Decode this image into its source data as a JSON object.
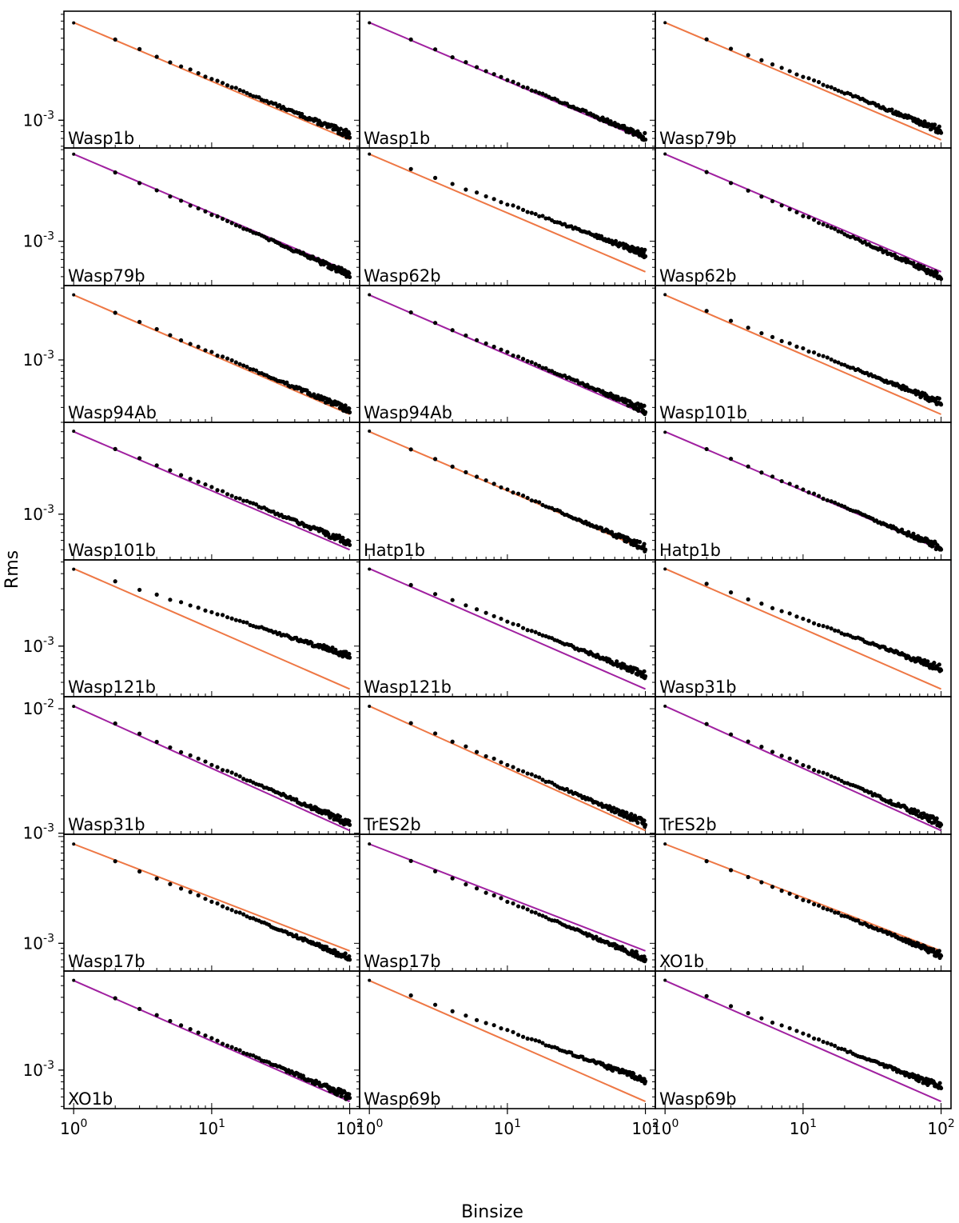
{
  "figure": {
    "xlabel": "Binsize",
    "ylabel": "Rms",
    "x_ticks": [
      "10^0",
      "10^1",
      "10^2"
    ],
    "colors": {
      "orange": "#ee7744",
      "purple": "#a020a0",
      "points": "#000000"
    }
  },
  "chart_data": {
    "type": "scatter",
    "xscale": "log",
    "yscale": "log",
    "xlim": [
      0.85,
      118
    ],
    "xlabel": "Binsize",
    "ylabel": "Rms",
    "panels": [
      {
        "label": "Wasp1b",
        "row": 0,
        "col": 0,
        "line_color": "orange",
        "r0": 0.0068,
        "r100": 0.00075,
        "ylim": [
          0.00058,
          0.0085
        ],
        "yticks": [
          "10^-3"
        ]
      },
      {
        "label": "Wasp1b",
        "row": 0,
        "col": 1,
        "line_color": "purple",
        "r0": 0.0068,
        "r100": 0.00072,
        "ylim": [
          0.00058,
          0.0085
        ],
        "yticks": []
      },
      {
        "label": "Wasp79b",
        "row": 0,
        "col": 2,
        "line_color": "orange",
        "r0": 0.0068,
        "r100": 0.00082,
        "ylim": [
          0.00058,
          0.0085
        ],
        "yticks": []
      },
      {
        "label": "Wasp79b",
        "row": 1,
        "col": 0,
        "line_color": "purple",
        "r0": 0.0055,
        "r100": 0.00052,
        "ylim": [
          0.00042,
          0.0062
        ],
        "yticks": [
          "10^-3"
        ]
      },
      {
        "label": "Wasp62b",
        "row": 1,
        "col": 1,
        "line_color": "orange",
        "r0": 0.0055,
        "r100": 0.00078,
        "ylim": [
          0.00042,
          0.0062
        ],
        "yticks": []
      },
      {
        "label": "Wasp62b",
        "row": 1,
        "col": 2,
        "line_color": "purple",
        "r0": 0.0055,
        "r100": 0.0005,
        "ylim": [
          0.00042,
          0.0062
        ],
        "yticks": []
      },
      {
        "label": "Wasp94Ab",
        "row": 2,
        "col": 0,
        "line_color": "orange",
        "r0": 0.0035,
        "r100": 0.00038,
        "ylim": [
          0.0003,
          0.0042
        ],
        "yticks": [
          "10^-3"
        ]
      },
      {
        "label": "Wasp94Ab",
        "row": 2,
        "col": 1,
        "line_color": "purple",
        "r0": 0.0035,
        "r100": 0.00038,
        "ylim": [
          0.0003,
          0.0042
        ],
        "yticks": []
      },
      {
        "label": "Wasp101b",
        "row": 2,
        "col": 2,
        "line_color": "orange",
        "r0": 0.0035,
        "r100": 0.00044,
        "ylim": [
          0.0003,
          0.0042
        ],
        "yticks": []
      },
      {
        "label": "Wasp101b",
        "row": 3,
        "col": 0,
        "line_color": "purple",
        "r0": 0.005,
        "r100": 0.00057,
        "ylim": [
          0.00041,
          0.006
        ],
        "yticks": [
          "10^-3"
        ]
      },
      {
        "label": "Hatp1b",
        "row": 3,
        "col": 1,
        "line_color": "orange",
        "r0": 0.005,
        "r100": 0.00052,
        "ylim": [
          0.00041,
          0.006
        ],
        "yticks": []
      },
      {
        "label": "Hatp1b",
        "row": 3,
        "col": 2,
        "line_color": "purple",
        "r0": 0.005,
        "r100": 0.00052,
        "ylim": [
          0.00041,
          0.006
        ],
        "yticks": []
      },
      {
        "label": "Wasp121b",
        "row": 4,
        "col": 0,
        "line_color": "orange",
        "r0": 0.0044,
        "r100": 0.00083,
        "ylim": [
          0.00038,
          0.0052
        ],
        "yticks": [
          "10^-3"
        ]
      },
      {
        "label": "Wasp121b",
        "row": 4,
        "col": 1,
        "line_color": "purple",
        "r0": 0.0044,
        "r100": 0.00058,
        "ylim": [
          0.00038,
          0.0052
        ],
        "yticks": []
      },
      {
        "label": "Wasp31b",
        "row": 4,
        "col": 2,
        "line_color": "orange",
        "r0": 0.0044,
        "r100": 0.00065,
        "ylim": [
          0.00038,
          0.0052
        ],
        "yticks": []
      },
      {
        "label": "Wasp31b",
        "row": 5,
        "col": 0,
        "line_color": "purple",
        "r0": 0.0105,
        "r100": 0.0012,
        "ylim": [
          0.00098,
          0.0125
        ],
        "yticks": [
          "10^-2",
          "10^-3"
        ]
      },
      {
        "label": "TrES2b",
        "row": 5,
        "col": 1,
        "line_color": "orange",
        "r0": 0.0105,
        "r100": 0.0012,
        "ylim": [
          0.00098,
          0.0125
        ],
        "yticks": []
      },
      {
        "label": "TrES2b",
        "row": 5,
        "col": 2,
        "line_color": "purple",
        "r0": 0.0105,
        "r100": 0.0012,
        "ylim": [
          0.00098,
          0.0125
        ],
        "yticks": []
      },
      {
        "label": "Wasp17b",
        "row": 6,
        "col": 0,
        "line_color": "orange",
        "r0": 0.0085,
        "r100": 0.00072,
        "ylim": [
          0.00055,
          0.0105
        ],
        "yticks": [
          "10^-3"
        ]
      },
      {
        "label": "Wasp17b",
        "row": 6,
        "col": 1,
        "line_color": "purple",
        "r0": 0.0085,
        "r100": 0.00072,
        "ylim": [
          0.00055,
          0.0105
        ],
        "yticks": []
      },
      {
        "label": "XO1b",
        "row": 6,
        "col": 2,
        "line_color": "orange",
        "r0": 0.0085,
        "r100": 0.00078,
        "ylim": [
          0.00055,
          0.0105
        ],
        "yticks": []
      },
      {
        "label": "XO1b",
        "row": 7,
        "col": 0,
        "line_color": "purple",
        "r0": 0.0055,
        "r100": 0.0006,
        "ylim": [
          0.00048,
          0.0066
        ],
        "yticks": [
          "10^-3"
        ]
      },
      {
        "label": "Wasp69b",
        "row": 7,
        "col": 1,
        "line_color": "orange",
        "r0": 0.0055,
        "r100": 0.00082,
        "ylim": [
          0.00048,
          0.0066
        ],
        "yticks": []
      },
      {
        "label": "Wasp69b",
        "row": 7,
        "col": 2,
        "line_color": "purple",
        "r0": 0.0055,
        "r100": 0.00072,
        "ylim": [
          0.00048,
          0.0066
        ],
        "yticks": []
      }
    ]
  }
}
